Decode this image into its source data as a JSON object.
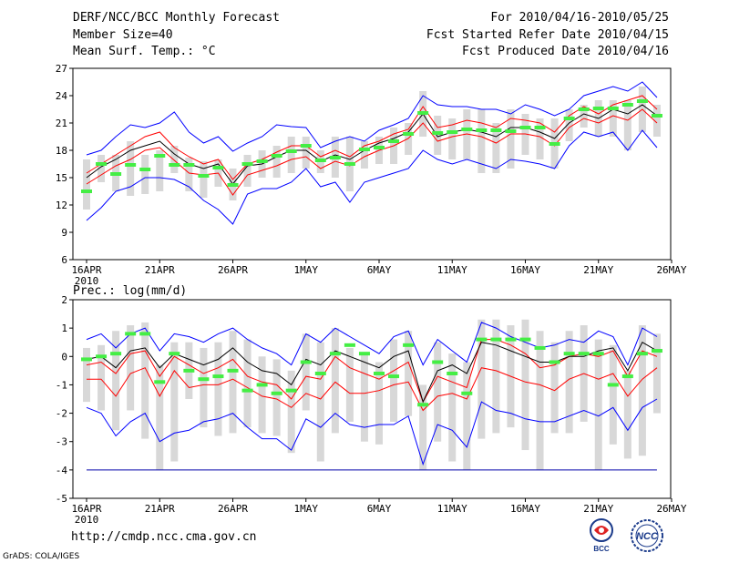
{
  "header": {
    "title": "DERF/NCC/BCC Monthly Forecast",
    "member_size": "Member Size=40",
    "variable": "Mean Surf. Temp.: °C",
    "period": "For 2010/04/16-2010/05/25",
    "started": "Fcst Started Refer Date 2010/04/15",
    "produced": "Fcst Produced Date 2010/04/16"
  },
  "footer": {
    "url": "http://cmdp.ncc.cma.gov.cn",
    "credit": "GrADS: COLA/IGES",
    "logo_left": "BCC",
    "logo_right": "NCC"
  },
  "colors": {
    "envelope_outer": "#0000ff",
    "envelope_inner": "#ff0000",
    "mean": "#000000",
    "member_box": "#d8d8d8",
    "median_marker": "#44ee44",
    "baseline": "#0000aa"
  },
  "chart_data": [
    {
      "type": "line",
      "title": "Mean Surf. Temp.: °C",
      "x_labels": [
        "16APR",
        "21APR",
        "26APR",
        "1MAY",
        "6MAY",
        "11MAY",
        "16MAY",
        "21MAY",
        "26MAY"
      ],
      "x_sublabel": "2010",
      "days": 40,
      "ylim": [
        6,
        27
      ],
      "yticks": [
        6,
        9,
        12,
        15,
        18,
        21,
        24,
        27
      ],
      "series": [
        {
          "name": "upper-outer",
          "values": [
            17.5,
            18,
            19.5,
            20.8,
            20.5,
            21,
            22.2,
            20,
            18.8,
            19.5,
            17.9,
            18.8,
            19.5,
            20.8,
            20.6,
            20.5,
            18.3,
            19,
            19.5,
            19,
            20.2,
            20.8,
            21.5,
            24,
            23,
            22.8,
            22.8,
            22.5,
            22.5,
            22,
            23,
            22.5,
            21.8,
            22.5,
            24,
            24.5,
            25,
            24.5,
            25.5,
            23.8
          ]
        },
        {
          "name": "upper-inner",
          "values": [
            15.5,
            16.5,
            17.5,
            18.5,
            19.5,
            20,
            18.3,
            17.3,
            16.5,
            17,
            14.8,
            16.5,
            17,
            17.8,
            18.5,
            18.5,
            17.3,
            18,
            17.3,
            18.5,
            19,
            19.8,
            20.3,
            22.8,
            20.5,
            20.8,
            21.3,
            21,
            20.5,
            21.5,
            21.3,
            21,
            20,
            21.8,
            22.8,
            22,
            23,
            23.5,
            24,
            22.5
          ]
        },
        {
          "name": "mean",
          "values": [
            15,
            16.2,
            17,
            18,
            18.5,
            19,
            17.6,
            16.5,
            16,
            16.5,
            14.3,
            16.3,
            16.5,
            17.3,
            18,
            18,
            16.8,
            17.5,
            17,
            18,
            18.8,
            19.3,
            20,
            22,
            19.5,
            20,
            20.3,
            20,
            19.5,
            20.5,
            20.5,
            20,
            19.3,
            21,
            22,
            21.5,
            22.5,
            22,
            23,
            21.8
          ]
        },
        {
          "name": "lower-inner",
          "values": [
            14.3,
            15.3,
            16.3,
            17,
            18,
            18.3,
            16.9,
            15.5,
            15.3,
            15.5,
            13.1,
            15.3,
            15.8,
            16.3,
            17,
            17.3,
            16,
            16.8,
            16.3,
            17.3,
            18,
            18.5,
            19.3,
            21,
            19,
            19.5,
            19.8,
            19.5,
            18.8,
            19.8,
            19.8,
            19.5,
            18.5,
            20.5,
            21.5,
            21,
            21.8,
            21.3,
            22.5,
            21
          ]
        },
        {
          "name": "lower-outer",
          "values": [
            10.3,
            11.7,
            13.5,
            14,
            15,
            15,
            14.8,
            14,
            12.5,
            11.5,
            9.9,
            13.2,
            13.8,
            13.8,
            14.5,
            16,
            14,
            14.5,
            12.3,
            14.5,
            15,
            15.5,
            16,
            18,
            17,
            16.5,
            17,
            16.5,
            16,
            17,
            16.8,
            16.5,
            16,
            18.5,
            20,
            19.5,
            20,
            18,
            20.2,
            18.3
          ]
        },
        {
          "name": "box-top",
          "values": [
            17,
            17.5,
            17.5,
            19,
            17.5,
            18,
            18.5,
            17.2,
            16.8,
            17,
            16,
            17.5,
            18,
            18.5,
            19.5,
            19.5,
            18,
            19.5,
            19.5,
            19,
            19.5,
            20.5,
            21,
            24.5,
            21.8,
            21.5,
            22.5,
            22.5,
            21,
            22.5,
            22,
            21.5,
            21.5,
            22.5,
            23,
            23.5,
            23.5,
            23.5,
            25,
            23
          ]
        },
        {
          "name": "box-bottom",
          "values": [
            11.5,
            14.5,
            13.5,
            13,
            13.2,
            13.5,
            15.5,
            13.5,
            12.8,
            14,
            12.5,
            14,
            15,
            15,
            15.5,
            16,
            15.5,
            15,
            13.5,
            16,
            16.5,
            16.5,
            17.5,
            19.5,
            17.5,
            17,
            17,
            15.5,
            15.5,
            16,
            17.5,
            17,
            16,
            19,
            20.5,
            19.5,
            19.5,
            18,
            20,
            19.5
          ]
        },
        {
          "name": "median",
          "values": [
            13.5,
            16.5,
            15.4,
            16.4,
            15.9,
            17.4,
            16.4,
            16.4,
            15.2,
            16.1,
            14.2,
            16.5,
            16.8,
            17.4,
            17.9,
            18.5,
            16.9,
            17.2,
            16.5,
            18.1,
            18.3,
            19,
            19.8,
            22.1,
            19.9,
            20,
            20.3,
            20.2,
            20.2,
            20.1,
            20.5,
            20.5,
            18.7,
            21.5,
            22.5,
            22.6,
            22.6,
            23,
            23.4,
            21.8
          ]
        }
      ]
    },
    {
      "type": "line",
      "title": "Prec.: log(mm/d)",
      "x_labels": [
        "16APR",
        "21APR",
        "26APR",
        "1MAY",
        "6MAY",
        "11MAY",
        "16MAY",
        "21MAY",
        "26MAY"
      ],
      "x_sublabel": "2010",
      "days": 40,
      "ylim": [
        -5,
        2
      ],
      "yticks": [
        -5,
        -4,
        -3,
        -2,
        -1,
        0,
        1,
        2
      ],
      "baseline": -4,
      "series": [
        {
          "name": "upper-outer",
          "values": [
            0.6,
            0.8,
            0.3,
            0.8,
            1,
            0.2,
            0.8,
            0.7,
            0.5,
            0.8,
            1,
            0.6,
            0.3,
            0.1,
            -0.3,
            0.8,
            0.5,
            1,
            0.7,
            0.4,
            0.1,
            0.7,
            0.9,
            -0.3,
            0.6,
            0.2,
            -0.2,
            1.2,
            1,
            0.7,
            0.5,
            0.3,
            0.4,
            0.6,
            0.5,
            0.9,
            0.7,
            -0.3,
            1,
            0.7
          ]
        },
        {
          "name": "upper-inner",
          "values": [
            -0.3,
            -0.2,
            -0.6,
            0.1,
            0.2,
            -0.7,
            0,
            -0.3,
            -0.6,
            -0.4,
            -0.1,
            -0.7,
            -0.9,
            -1,
            -1.5,
            -0.7,
            -0.8,
            0,
            -0.4,
            -0.6,
            -0.8,
            -0.5,
            -0.2,
            -1.6,
            -0.7,
            -0.9,
            -1.1,
            0.6,
            0.6,
            0.4,
            0.1,
            -0.4,
            -0.3,
            0,
            0.1,
            0,
            0.2,
            -0.7,
            0.2,
            0
          ]
        },
        {
          "name": "mean",
          "values": [
            -0.1,
            0,
            -0.4,
            0.2,
            0.3,
            -0.4,
            0.1,
            -0.1,
            -0.3,
            -0.1,
            0.3,
            -0.2,
            -0.5,
            -0.6,
            -1,
            -0.1,
            -0.3,
            0.2,
            0,
            -0.2,
            -0.4,
            0,
            0.2,
            -1.6,
            -0.5,
            -0.3,
            -0.6,
            0.5,
            0.4,
            0.2,
            0,
            -0.2,
            -0.2,
            0,
            0,
            0.2,
            0.3,
            -0.5,
            0.5,
            0.2
          ]
        },
        {
          "name": "lower-inner",
          "values": [
            -0.8,
            -0.8,
            -1.4,
            -0.6,
            -0.4,
            -1.4,
            -0.5,
            -1.1,
            -1,
            -1,
            -0.8,
            -1.1,
            -1.4,
            -1.5,
            -1.8,
            -1.3,
            -1.5,
            -0.9,
            -1.3,
            -1.3,
            -1.2,
            -1,
            -0.9,
            -1.9,
            -1.4,
            -1.3,
            -1.5,
            -0.4,
            -0.5,
            -0.7,
            -0.9,
            -1,
            -1.2,
            -0.8,
            -0.6,
            -0.8,
            -0.6,
            -1.4,
            -0.8,
            -0.4
          ]
        },
        {
          "name": "lower-outer",
          "values": [
            -1.8,
            -2,
            -2.8,
            -2.3,
            -2,
            -3,
            -2.7,
            -2.6,
            -2.3,
            -2.2,
            -2,
            -2.5,
            -2.9,
            -2.9,
            -3.3,
            -2.2,
            -2.5,
            -2,
            -2.4,
            -2.5,
            -2.4,
            -2.4,
            -2.1,
            -3.8,
            -2.4,
            -2.6,
            -3.2,
            -1.6,
            -1.9,
            -2,
            -2.2,
            -2.3,
            -2.3,
            -2.1,
            -1.9,
            -2.1,
            -1.8,
            -2.6,
            -1.8,
            -1.5
          ]
        },
        {
          "name": "box-top",
          "values": [
            0.3,
            0.4,
            0.9,
            1.1,
            1.2,
            -0.3,
            0.5,
            0.5,
            0.3,
            0.5,
            0.9,
            0.6,
            0,
            -0.1,
            -0.5,
            0.8,
            0.5,
            1,
            0.3,
            0.1,
            -0.2,
            0.6,
            0.9,
            -1,
            0.5,
            0.1,
            -0.2,
            1.3,
            1.3,
            1.1,
            1.3,
            0.9,
            0.5,
            0.9,
            1.1,
            0.6,
            0.4,
            -0.5,
            1.1,
            0.8
          ]
        },
        {
          "name": "box-bottom",
          "values": [
            -1.6,
            -1.9,
            -2.6,
            -1.9,
            -2.9,
            -4,
            -3.7,
            -1.5,
            -2.5,
            -2.8,
            -2.7,
            -2.5,
            -2.7,
            -2.8,
            -3.4,
            -1.9,
            -3.7,
            -2.7,
            -2.3,
            -3,
            -3.1,
            -2.3,
            -2.1,
            -4,
            -3,
            -3.7,
            -4,
            -2.9,
            -2.7,
            -2.5,
            -3.3,
            -4,
            -2.7,
            -2.7,
            -2.3,
            -4,
            -3.1,
            -3.6,
            -3.5,
            -2
          ]
        },
        {
          "name": "median",
          "values": [
            -0.1,
            0,
            0.1,
            0.8,
            0.8,
            -0.9,
            0.1,
            -0.5,
            -0.8,
            -0.7,
            -0.5,
            -1.2,
            -1,
            -1.3,
            -1.2,
            -0.2,
            -0.6,
            0.1,
            0.4,
            0.1,
            -0.6,
            -0.7,
            0.4,
            -1.7,
            -0.2,
            -0.6,
            -1.3,
            0.6,
            0.6,
            0.6,
            0.6,
            0.3,
            -0.2,
            0.1,
            0.1,
            0.1,
            -1,
            -0.7,
            0.1,
            0.2
          ]
        }
      ]
    }
  ]
}
